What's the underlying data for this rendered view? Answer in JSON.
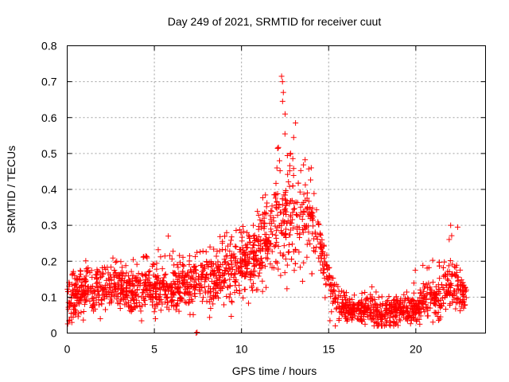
{
  "chart_data": {
    "type": "scatter",
    "title": "Day 249 of 2021, SRMTID for receiver cuut",
    "xlabel": "GPS time / hours",
    "ylabel": "SRMTID / TECUs",
    "xlim": [
      0,
      24
    ],
    "ylim": [
      0,
      0.8
    ],
    "x_ticks": [
      0,
      5,
      10,
      15,
      20
    ],
    "x_tick_labels": [
      "0",
      "5",
      "10",
      "15",
      "20"
    ],
    "y_ticks": [
      0,
      0.1,
      0.2,
      0.3,
      0.4,
      0.5,
      0.6,
      0.7,
      0.8
    ],
    "y_tick_labels": [
      "0",
      "0.1",
      "0.2",
      "0.3",
      "0.4",
      "0.5",
      "0.6",
      "0.7",
      "0.8"
    ],
    "grid": true,
    "marker": "+",
    "series": [
      {
        "name": "SRMTID",
        "color": "#ff0000",
        "time_range_hours": [
          0,
          22.9
        ],
        "typical_level_profile": {
          "hours": [
            0.0,
            1.0,
            2.0,
            3.0,
            4.0,
            5.0,
            6.0,
            7.0,
            8.0,
            9.0,
            10.0,
            10.5,
            11.0,
            11.5,
            12.0,
            12.5,
            13.0,
            13.5,
            14.0,
            14.5,
            15.0,
            15.5,
            16.0,
            17.0,
            18.0,
            19.0,
            20.0,
            20.5,
            21.0,
            21.5,
            22.0,
            22.5,
            22.9
          ],
          "values": [
            0.09,
            0.12,
            0.13,
            0.13,
            0.12,
            0.12,
            0.13,
            0.14,
            0.15,
            0.17,
            0.19,
            0.2,
            0.22,
            0.27,
            0.33,
            0.3,
            0.32,
            0.31,
            0.34,
            0.25,
            0.15,
            0.09,
            0.06,
            0.07,
            0.05,
            0.06,
            0.07,
            0.09,
            0.09,
            0.1,
            0.14,
            0.12,
            0.1
          ]
        },
        "spread_profile": {
          "hours": [
            0.0,
            5.0,
            9.0,
            11.0,
            12.0,
            13.0,
            14.0,
            15.0,
            16.0,
            20.0,
            22.0,
            22.9
          ],
          "values": [
            0.04,
            0.04,
            0.05,
            0.06,
            0.09,
            0.09,
            0.07,
            0.05,
            0.025,
            0.025,
            0.05,
            0.03
          ]
        },
        "upper_envelope": {
          "hours": [
            0.0,
            1.0,
            2.0,
            3.0,
            3.5,
            4.0,
            5.0,
            5.8,
            6.5,
            7.0,
            8.0,
            9.0,
            9.5,
            10.0,
            10.5,
            11.0,
            11.5,
            12.0,
            12.3,
            12.6,
            13.0,
            13.3,
            13.7,
            14.0,
            14.5,
            15.0,
            15.5,
            16.0,
            17.0,
            17.3,
            18.0,
            19.0,
            20.0,
            20.8,
            21.5,
            22.0,
            22.3,
            22.6,
            22.9
          ],
          "values": [
            0.15,
            0.21,
            0.2,
            0.22,
            0.24,
            0.21,
            0.22,
            0.27,
            0.22,
            0.22,
            0.23,
            0.28,
            0.3,
            0.31,
            0.28,
            0.37,
            0.45,
            0.55,
            0.72,
            0.5,
            0.58,
            0.5,
            0.48,
            0.44,
            0.28,
            0.2,
            0.13,
            0.12,
            0.14,
            0.16,
            0.12,
            0.1,
            0.18,
            0.23,
            0.2,
            0.3,
            0.29,
            0.15,
            0.12
          ]
        },
        "notable_points": [
          {
            "x": 12.3,
            "y": 0.715
          },
          {
            "x": 12.35,
            "y": 0.7
          },
          {
            "x": 12.4,
            "y": 0.67
          },
          {
            "x": 13.1,
            "y": 0.585
          },
          {
            "x": 12.5,
            "y": 0.61
          },
          {
            "x": 14.0,
            "y": 0.46
          },
          {
            "x": 22.0,
            "y": 0.3
          },
          {
            "x": 22.4,
            "y": 0.295
          },
          {
            "x": 5.8,
            "y": 0.27
          },
          {
            "x": 1.9,
            "y": 0.04
          },
          {
            "x": 7.4,
            "y": 0.0
          },
          {
            "x": 7.45,
            "y": 0.002
          }
        ]
      }
    ]
  }
}
